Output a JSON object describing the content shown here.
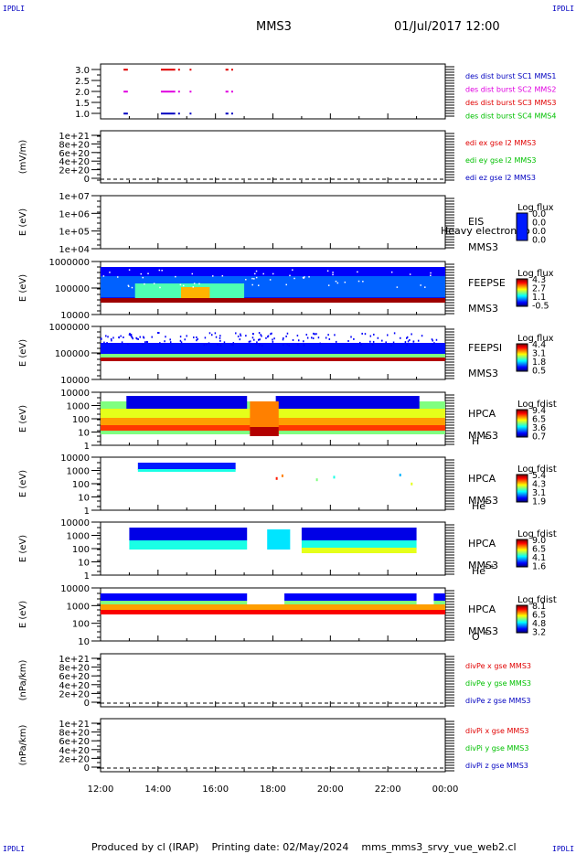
{
  "corners": {
    "tl": "IPDLI",
    "tr": "IPDLI",
    "bl": "IPDLI",
    "br": "IPDLI"
  },
  "header": {
    "mission": "MMS3",
    "datetime": "01/Jul/2017 12:00"
  },
  "footer": {
    "text": "Produced by cl (IRAP)    Printing date: 02/May/2024    mms_mms3_srvy_vue_web2.cl"
  },
  "colors": {
    "red": "#e00000",
    "magenta": "#e000e0",
    "blue": "#0000c0",
    "green": "#00c000"
  },
  "chart_data": [
    {
      "id": "p1",
      "type": "scatter",
      "ylabels": [
        "3.0",
        "2.5",
        "2.0",
        "1.5",
        "1.0"
      ],
      "legend": [
        {
          "text": "des dist burst SC1 MMS1",
          "color": "blue"
        },
        {
          "text": "des dist burst SC2 MMS2",
          "color": "magenta"
        },
        {
          "text": "des dist burst SC3 MMS3",
          "color": "red"
        },
        {
          "text": "des dist burst SC4 MMS4",
          "color": "green"
        }
      ],
      "series": [
        {
          "y": 3,
          "color": "red",
          "x": [
            [
              12.8,
              12.95
            ],
            [
              14.1,
              14.6
            ],
            [
              14.7,
              14.75
            ],
            [
              15.1,
              15.15
            ],
            [
              16.35,
              16.45
            ],
            [
              16.55,
              16.6
            ]
          ]
        },
        {
          "y": 2,
          "color": "magenta",
          "x": [
            [
              12.8,
              12.95
            ],
            [
              14.1,
              14.6
            ],
            [
              14.7,
              14.75
            ],
            [
              15.1,
              15.15
            ],
            [
              16.35,
              16.45
            ],
            [
              16.55,
              16.6
            ]
          ]
        },
        {
          "y": 1,
          "color": "blue",
          "x": [
            [
              12.8,
              12.95
            ],
            [
              14.1,
              14.6
            ],
            [
              14.7,
              14.75
            ],
            [
              15.1,
              15.15
            ],
            [
              16.35,
              16.45
            ],
            [
              16.55,
              16.6
            ]
          ]
        }
      ]
    },
    {
      "id": "p2",
      "type": "line",
      "ylabel": "(mV/m)",
      "ylabels": [
        "1e+21",
        "8e+20",
        "6e+20",
        "4e+20",
        "2e+20",
        "0"
      ],
      "legend": [
        {
          "text": "edi ex gse l2 MMS3",
          "color": "red"
        },
        {
          "text": "edi ey gse l2 MMS3",
          "color": "green"
        },
        {
          "text": "edi ez gse l2 MMS3",
          "color": "blue"
        }
      ]
    },
    {
      "id": "p3",
      "type": "heatmap",
      "ylabel": "E (eV)",
      "ylabels": [
        "1e+07",
        "1e+06",
        "1e+05",
        "1e+04"
      ],
      "side": [
        "EIS",
        "MMS3"
      ],
      "overlay": "Heavy electron to",
      "cbtitle": "Log flux",
      "cbvals": [
        "0.0",
        "0.0",
        "0.0",
        "0.0"
      ]
    },
    {
      "id": "p4",
      "type": "heatmap",
      "ylabel": "E (eV)",
      "ylabels": [
        "1000000",
        "100000",
        "10000"
      ],
      "side": [
        "FEEPSE",
        "MMS3"
      ],
      "cbtitle": "Log flux",
      "cbvals": [
        "4.3",
        "2.7",
        "1.1",
        "-0.5"
      ]
    },
    {
      "id": "p5",
      "type": "heatmap",
      "ylabel": "E (eV)",
      "ylabels": [
        "1000000",
        "100000",
        "10000"
      ],
      "side": [
        "FEEPSI",
        "MMS3"
      ],
      "cbtitle": "Log flux",
      "cbvals": [
        "4.4",
        "3.1",
        "1.8",
        "0.5"
      ]
    },
    {
      "id": "p6",
      "type": "heatmap",
      "ylabel": "E (eV)",
      "ylabels": [
        "10000",
        "1000",
        "100",
        "10",
        "1"
      ],
      "side": [
        "HPCA",
        "MMS3",
        "H",
        "+"
      ],
      "cbtitle": "Log fdist",
      "cbvals": [
        "9.4",
        "6.5",
        "3.6",
        "0.7"
      ]
    },
    {
      "id": "p7",
      "type": "heatmap",
      "ylabel": "E (eV)",
      "ylabels": [
        "10000",
        "1000",
        "100",
        "10",
        "1"
      ],
      "side": [
        "HPCA",
        "MMS3",
        "He",
        "+"
      ],
      "cbtitle": "Log fdist",
      "cbvals": [
        "5.4",
        "4.3",
        "3.1",
        "1.9"
      ]
    },
    {
      "id": "p8",
      "type": "heatmap",
      "ylabel": "E (eV)",
      "ylabels": [
        "10000",
        "1000",
        "100",
        "10",
        "1"
      ],
      "side": [
        "HPCA",
        "MMS3",
        "He",
        "++"
      ],
      "cbtitle": "Log fdist",
      "cbvals": [
        "9.0",
        "6.5",
        "4.1",
        "1.6"
      ]
    },
    {
      "id": "p9",
      "type": "heatmap",
      "ylabel": "E (eV)",
      "ylabels": [
        "10000",
        "1000",
        "100",
        "10"
      ],
      "side": [
        "HPCA",
        "MMS3",
        "O",
        "+"
      ],
      "cbtitle": "Log fdist",
      "cbvals": [
        "8.1",
        "6.5",
        "4.8",
        "3.2"
      ]
    },
    {
      "id": "p10",
      "type": "line",
      "ylabel": "(nPa/km)",
      "ylabels": [
        "1e+21",
        "8e+20",
        "6e+20",
        "4e+20",
        "2e+20",
        "0"
      ],
      "legend": [
        {
          "text": "divPe x gse MMS3",
          "color": "red"
        },
        {
          "text": "divPe y gse MMS3",
          "color": "green"
        },
        {
          "text": "divPe z gse MMS3",
          "color": "blue"
        }
      ]
    },
    {
      "id": "p11",
      "type": "line",
      "ylabel": "(nPa/km)",
      "ylabels": [
        "1e+21",
        "8e+20",
        "6e+20",
        "4e+20",
        "2e+20",
        "0"
      ],
      "legend": [
        {
          "text": "divPi x gse MMS3",
          "color": "red"
        },
        {
          "text": "divPi y gse MMS3",
          "color": "green"
        },
        {
          "text": "divPi z gse MMS3",
          "color": "blue"
        }
      ]
    }
  ],
  "xaxis": {
    "labels": [
      "12:00",
      "14:00",
      "16:00",
      "18:00",
      "20:00",
      "22:00",
      "00:00"
    ]
  }
}
